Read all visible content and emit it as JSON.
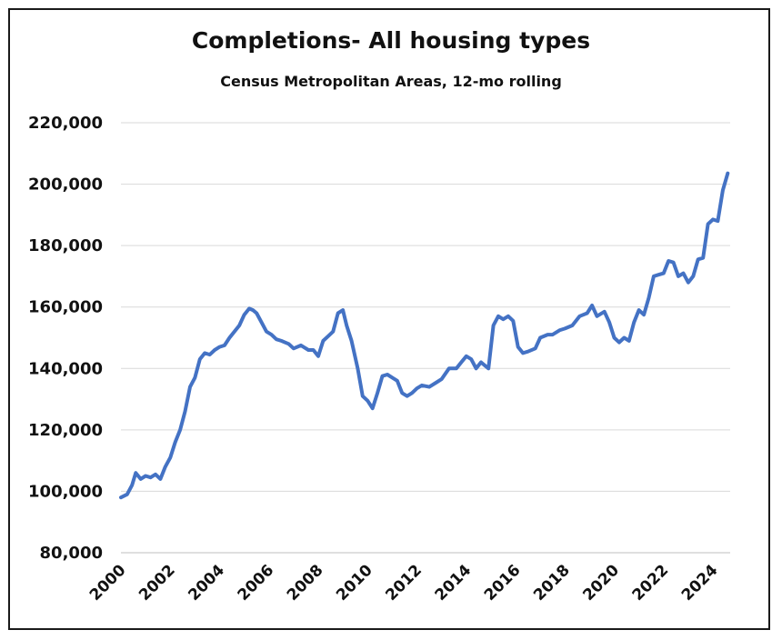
{
  "chart_data": {
    "type": "line",
    "title": "Completions- All housing types",
    "subtitle": "Census Metropolitan Areas, 12-mo rolling",
    "xlabel": "",
    "ylabel": "",
    "ylim": [
      80000,
      220000
    ],
    "xlim": [
      2000,
      2024.7
    ],
    "yticks": [
      80000,
      100000,
      120000,
      140000,
      160000,
      180000,
      200000,
      220000
    ],
    "ytick_labels": [
      "80,000",
      "100,000",
      "120,000",
      "140,000",
      "160,000",
      "180,000",
      "200,000",
      "220,000"
    ],
    "xticks": [
      2000,
      2002,
      2004,
      2006,
      2008,
      2010,
      2012,
      2014,
      2016,
      2018,
      2020,
      2022,
      2024
    ],
    "xtick_labels": [
      "2000",
      "2002",
      "2004",
      "2006",
      "2008",
      "2010",
      "2012",
      "2014",
      "2016",
      "2018",
      "2020",
      "2022",
      "2024"
    ],
    "grid": "horizontal",
    "line_color": "#4472c4",
    "series": [
      {
        "x": [
          2000.0,
          2000.25,
          2000.45,
          2000.6,
          2000.8,
          2001.0,
          2001.2,
          2001.4,
          2001.6,
          2001.8,
          2002.0,
          2002.2,
          2002.4,
          2002.6,
          2002.8,
          2003.0,
          2003.2,
          2003.4,
          2003.6,
          2003.8,
          2004.0,
          2004.2,
          2004.4,
          2004.6,
          2004.8,
          2005.0,
          2005.2,
          2005.35,
          2005.5,
          2005.7,
          2005.9,
          2006.1,
          2006.3,
          2006.5,
          2006.8,
          2007.0,
          2007.3,
          2007.6,
          2007.8,
          2008.0,
          2008.1,
          2008.2,
          2008.4,
          2008.6,
          2008.8,
          2009.0,
          2009.15,
          2009.35,
          2009.6,
          2009.8,
          2010.0,
          2010.2,
          2010.4,
          2010.6,
          2010.8,
          2011.0,
          2011.2,
          2011.4,
          2011.6,
          2011.8,
          2012.0,
          2012.2,
          2012.5,
          2012.8,
          2013.0,
          2013.3,
          2013.6,
          2013.8,
          2014.0,
          2014.2,
          2014.4,
          2014.6,
          2014.75,
          2014.9,
          2015.1,
          2015.3,
          2015.5,
          2015.7,
          2015.9,
          2016.1,
          2016.3,
          2016.5,
          2016.8,
          2017.0,
          2017.3,
          2017.5,
          2017.8,
          2018.0,
          2018.3,
          2018.6,
          2018.9,
          2019.1,
          2019.3,
          2019.6,
          2019.8,
          2020.0,
          2020.2,
          2020.4,
          2020.6,
          2020.8,
          2021.0,
          2021.2,
          2021.4,
          2021.6,
          2021.8,
          2022.0,
          2022.2,
          2022.4,
          2022.6,
          2022.8,
          2023.0,
          2023.2,
          2023.4,
          2023.6,
          2023.8,
          2024.0,
          2024.2,
          2024.4,
          2024.6
        ],
        "y": [
          98000,
          99000,
          102000,
          106000,
          104000,
          105000,
          104500,
          105500,
          104000,
          108000,
          111000,
          116000,
          120000,
          126000,
          134000,
          137000,
          143000,
          145000,
          144500,
          146000,
          147000,
          147500,
          150000,
          152000,
          154000,
          157500,
          159500,
          159000,
          158000,
          155000,
          152000,
          151000,
          149500,
          149000,
          148000,
          146500,
          147500,
          146000,
          146000,
          144000,
          146500,
          149000,
          150500,
          152000,
          158000,
          159000,
          154000,
          149000,
          140000,
          131000,
          129500,
          127000,
          132000,
          137500,
          138000,
          137000,
          136000,
          132000,
          131000,
          132000,
          133500,
          134500,
          134000,
          135500,
          136500,
          140000,
          140000,
          142000,
          144000,
          143000,
          140000,
          142000,
          141000,
          140000,
          154000,
          157000,
          156000,
          157000,
          155500,
          147000,
          145000,
          145500,
          146500,
          150000,
          151000,
          151000,
          152500,
          153000,
          154000,
          157000,
          158000,
          160500,
          157000,
          158500,
          155000,
          150000,
          148500,
          150000,
          149000,
          155000,
          159000,
          157500,
          163000,
          170000,
          170500,
          171000,
          175000,
          174500,
          170000,
          171000,
          168000,
          170000,
          175500,
          176000,
          187000,
          188500,
          188000,
          198000,
          203500
        ]
      }
    ]
  }
}
